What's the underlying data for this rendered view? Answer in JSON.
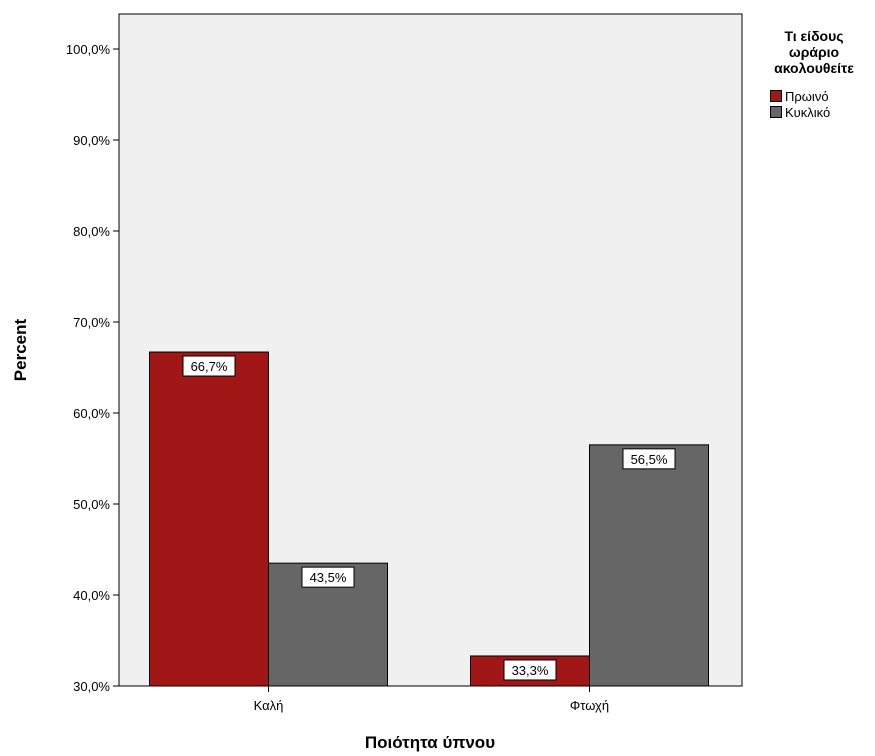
{
  "chart_data": {
    "type": "bar",
    "categories": [
      "Καλή",
      "Φτωχή"
    ],
    "series": [
      {
        "name": "Πρωινό",
        "values": [
          66.7,
          33.3
        ],
        "labels": [
          "66,7%",
          "33,3%"
        ],
        "color": "#a11616"
      },
      {
        "name": "Κυκλικό",
        "values": [
          43.5,
          56.5
        ],
        "labels": [
          "43,5%",
          "56,5%"
        ],
        "color": "#666666"
      }
    ],
    "xlabel": "Ποιότητα ύπνου",
    "ylabel": "Percent",
    "ylim": [
      30,
      100
    ],
    "yticks": [
      30,
      40,
      50,
      60,
      70,
      80,
      90,
      100
    ],
    "ytick_labels": [
      "30,0%",
      "40,0%",
      "50,0%",
      "60,0%",
      "70,0%",
      "80,0%",
      "90,0%",
      "100,0%"
    ],
    "legend": {
      "title_lines": [
        "Τι είδους",
        "ωράριο",
        "ακολουθείτε"
      ],
      "position": "top-right"
    },
    "plot_background": "#f0f0f0",
    "grid": false
  }
}
